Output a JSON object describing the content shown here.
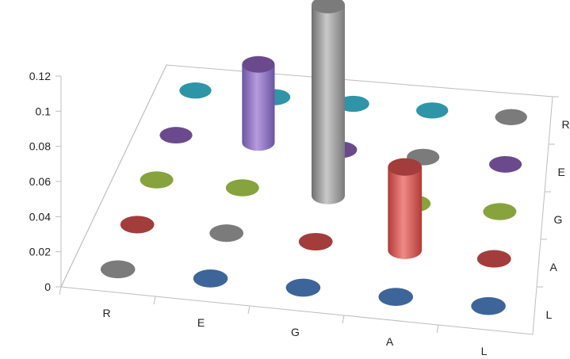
{
  "chart_data": {
    "type": "bar",
    "subtype": "3d-cylinder",
    "title": "",
    "z_axis": {
      "range": [
        0,
        0.12
      ],
      "ticks": [
        "0",
        "0.02",
        "0.04",
        "0.06",
        "0.08",
        "0.1",
        "0.12"
      ]
    },
    "x_categories": [
      "R",
      "E",
      "G",
      "A",
      "L"
    ],
    "depth_categories": [
      "R",
      "E",
      "G",
      "A",
      "L"
    ],
    "gridlines": false,
    "colors": {
      "R": "#2e95a8",
      "E": "#6a4a8c",
      "G": "#86a33d",
      "A": "#a33d3b",
      "L": "#3d659a",
      "neutral": "#7b7b7b"
    },
    "points": [
      {
        "x": "R",
        "depth": "R",
        "value": 0.0,
        "color": "R"
      },
      {
        "x": "E",
        "depth": "R",
        "value": 0.0,
        "color": "R"
      },
      {
        "x": "G",
        "depth": "R",
        "value": 0.0,
        "color": "R"
      },
      {
        "x": "A",
        "depth": "R",
        "value": 0.0,
        "color": "R"
      },
      {
        "x": "L",
        "depth": "R",
        "value": 0.0,
        "color": "neutral"
      },
      {
        "x": "R",
        "depth": "E",
        "value": 0.0,
        "color": "E"
      },
      {
        "x": "E",
        "depth": "E",
        "value": 0.045,
        "color": "E"
      },
      {
        "x": "G",
        "depth": "E",
        "value": 0.0,
        "color": "E"
      },
      {
        "x": "A",
        "depth": "E",
        "value": 0.0,
        "color": "neutral"
      },
      {
        "x": "L",
        "depth": "E",
        "value": 0.0,
        "color": "E"
      },
      {
        "x": "R",
        "depth": "G",
        "value": 0.0,
        "color": "G"
      },
      {
        "x": "E",
        "depth": "G",
        "value": 0.0,
        "color": "G"
      },
      {
        "x": "G",
        "depth": "G",
        "value": 0.11,
        "color": "neutral"
      },
      {
        "x": "A",
        "depth": "G",
        "value": 0.0,
        "color": "G"
      },
      {
        "x": "L",
        "depth": "G",
        "value": 0.0,
        "color": "G"
      },
      {
        "x": "R",
        "depth": "A",
        "value": 0.0,
        "color": "A"
      },
      {
        "x": "E",
        "depth": "A",
        "value": 0.0,
        "color": "neutral"
      },
      {
        "x": "G",
        "depth": "A",
        "value": 0.0,
        "color": "A"
      },
      {
        "x": "A",
        "depth": "A",
        "value": 0.048,
        "color": "A"
      },
      {
        "x": "L",
        "depth": "A",
        "value": 0.0,
        "color": "A"
      },
      {
        "x": "R",
        "depth": "L",
        "value": 0.0,
        "color": "neutral"
      },
      {
        "x": "E",
        "depth": "L",
        "value": 0.0,
        "color": "L"
      },
      {
        "x": "G",
        "depth": "L",
        "value": 0.0,
        "color": "L"
      },
      {
        "x": "A",
        "depth": "L",
        "value": 0.0,
        "color": "L"
      },
      {
        "x": "L",
        "depth": "L",
        "value": 0.0,
        "color": "L"
      }
    ]
  }
}
